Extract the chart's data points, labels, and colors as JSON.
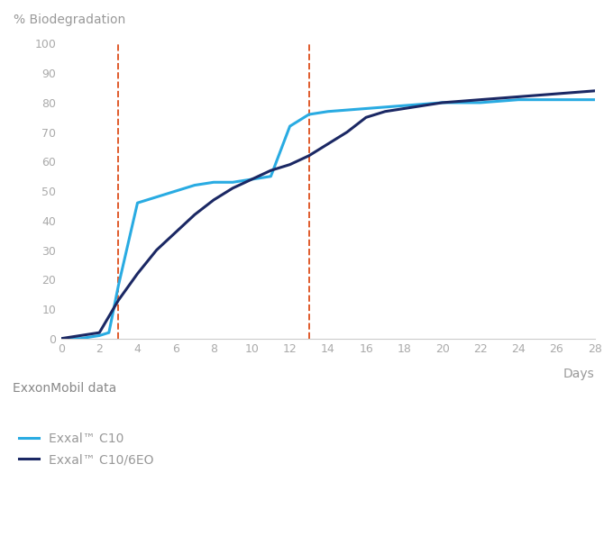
{
  "title_ylabel": "% Biodegradation",
  "xlabel": "Days",
  "source_label": "ExxonMobil data",
  "legend_entries": [
    "Exxal™ C10",
    "Exxal™ C10/6EO"
  ],
  "line_colors": [
    "#29ABE2",
    "#1B2864"
  ],
  "dashed_vlines": [
    3,
    13
  ],
  "dashed_color": "#E05A2B",
  "c10_x": [
    0,
    1,
    2,
    2.5,
    3,
    4,
    5,
    6,
    7,
    8,
    9,
    10,
    11,
    12,
    12.5,
    13,
    14,
    16,
    18,
    20,
    22,
    24,
    26,
    28
  ],
  "c10_y": [
    0,
    0,
    1,
    2,
    18,
    46,
    48,
    50,
    52,
    53,
    53,
    54,
    55,
    72,
    74,
    76,
    77,
    78,
    79,
    80,
    80,
    81,
    81,
    81
  ],
  "c10_6eo_x": [
    0,
    1,
    2,
    3,
    4,
    5,
    6,
    7,
    8,
    9,
    10,
    11,
    12,
    13,
    14,
    15,
    16,
    17,
    18,
    19,
    20,
    22,
    24,
    26,
    28
  ],
  "c10_6eo_y": [
    0,
    1,
    2,
    13,
    22,
    30,
    36,
    42,
    47,
    51,
    54,
    57,
    59,
    62,
    66,
    70,
    75,
    77,
    78,
    79,
    80,
    81,
    82,
    83,
    84
  ],
  "xlim": [
    0,
    28
  ],
  "ylim": [
    0,
    100
  ],
  "xticks": [
    0,
    2,
    4,
    6,
    8,
    10,
    12,
    14,
    16,
    18,
    20,
    22,
    24,
    26,
    28
  ],
  "yticks": [
    0,
    10,
    20,
    30,
    40,
    50,
    60,
    70,
    80,
    90,
    100
  ],
  "bg_color": "#FFFFFF",
  "tick_color": "#AAAAAA",
  "label_color": "#999999",
  "source_color": "#888888",
  "line_width": 2.2
}
